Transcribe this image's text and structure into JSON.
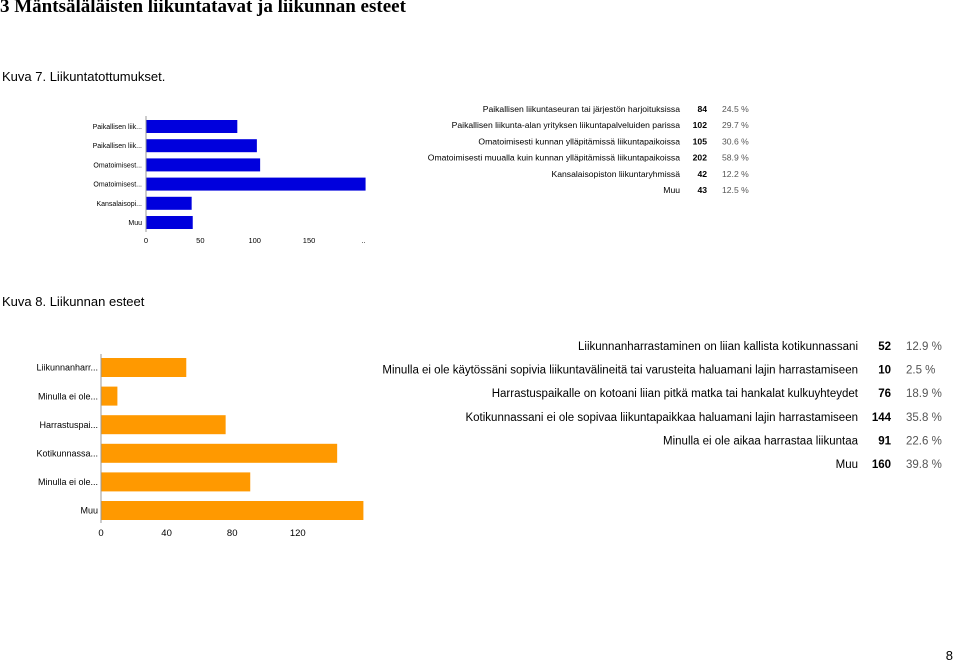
{
  "page": {
    "heading": "3 Mäntsäläläisten liikuntatavat ja liikunnan esteet",
    "page_number": "8"
  },
  "colors": {
    "chart1_bar": "#0000dd",
    "chart2_bar": "#ff9900",
    "axis": "#999999",
    "text": "#000000",
    "percent_text": "#555555"
  },
  "chart_data": [
    {
      "type": "bar",
      "orientation": "horizontal",
      "caption": "Kuva 7. Liikuntatottumukset.",
      "categories": [
        "Paikallisen liik...",
        "Paikallisen liik...",
        "Omatoimisest...",
        "Omatoimisest...",
        "Kansalaisopi...",
        "Muu"
      ],
      "values": [
        84,
        102,
        105,
        202,
        42,
        43
      ],
      "xticks": [
        "0",
        "50",
        "100",
        "150",
        ".."
      ],
      "xlim": [
        0,
        205
      ],
      "grid": false,
      "legend": {
        "labels": [
          "Paikallisen liikuntaseuran tai järjestön harjoituksissa",
          "Paikallisen liikunta-alan yrityksen liikuntapalveluiden parissa",
          "Omatoimisesti kunnan ylläpitämissä liikuntapaikoissa",
          "Omatoimisesti muualla kuin kunnan ylläpitämissä liikuntapaikoissa",
          "Kansalaisopiston liikuntaryhmissä",
          "Muu"
        ],
        "counts": [
          "84",
          "102",
          "105",
          "202",
          "42",
          "43"
        ],
        "percents": [
          "24.5 %",
          "29.7 %",
          "30.6 %",
          "58.9 %",
          "12.2 %",
          "12.5 %"
        ]
      }
    },
    {
      "type": "bar",
      "orientation": "horizontal",
      "caption": "Kuva 8. Liikunnan esteet",
      "categories": [
        "Liikunnanharr...",
        "Minulla ei ole...",
        "Harrastuspai...",
        "Kotikunnassa...",
        "Minulla ei ole...",
        "Muu"
      ],
      "values": [
        52,
        10,
        76,
        144,
        91,
        160
      ],
      "xticks": [
        "0",
        "40",
        "80",
        "120"
      ],
      "xlim": [
        0,
        162
      ],
      "grid": false,
      "legend": {
        "labels": [
          "Liikunnanharrastaminen on liian kallista kotikunnassani",
          "Minulla ei ole käytössäni sopivia liikuntavälineitä tai varusteita haluamani lajin harrastamiseen",
          "Harrastuspaikalle on kotoani liian pitkä matka tai hankalat kulkuyhteydet",
          "Kotikunnassani ei ole sopivaa liikuntapaikkaa haluamani lajin harrastamiseen",
          "Minulla ei ole aikaa harrastaa liikuntaa",
          "Muu"
        ],
        "counts": [
          "52",
          "10",
          "76",
          "144",
          "91",
          "160"
        ],
        "percents": [
          "12.9 %",
          "2.5 %",
          "18.9 %",
          "35.8 %",
          "22.6 %",
          "39.8 %"
        ]
      }
    }
  ]
}
